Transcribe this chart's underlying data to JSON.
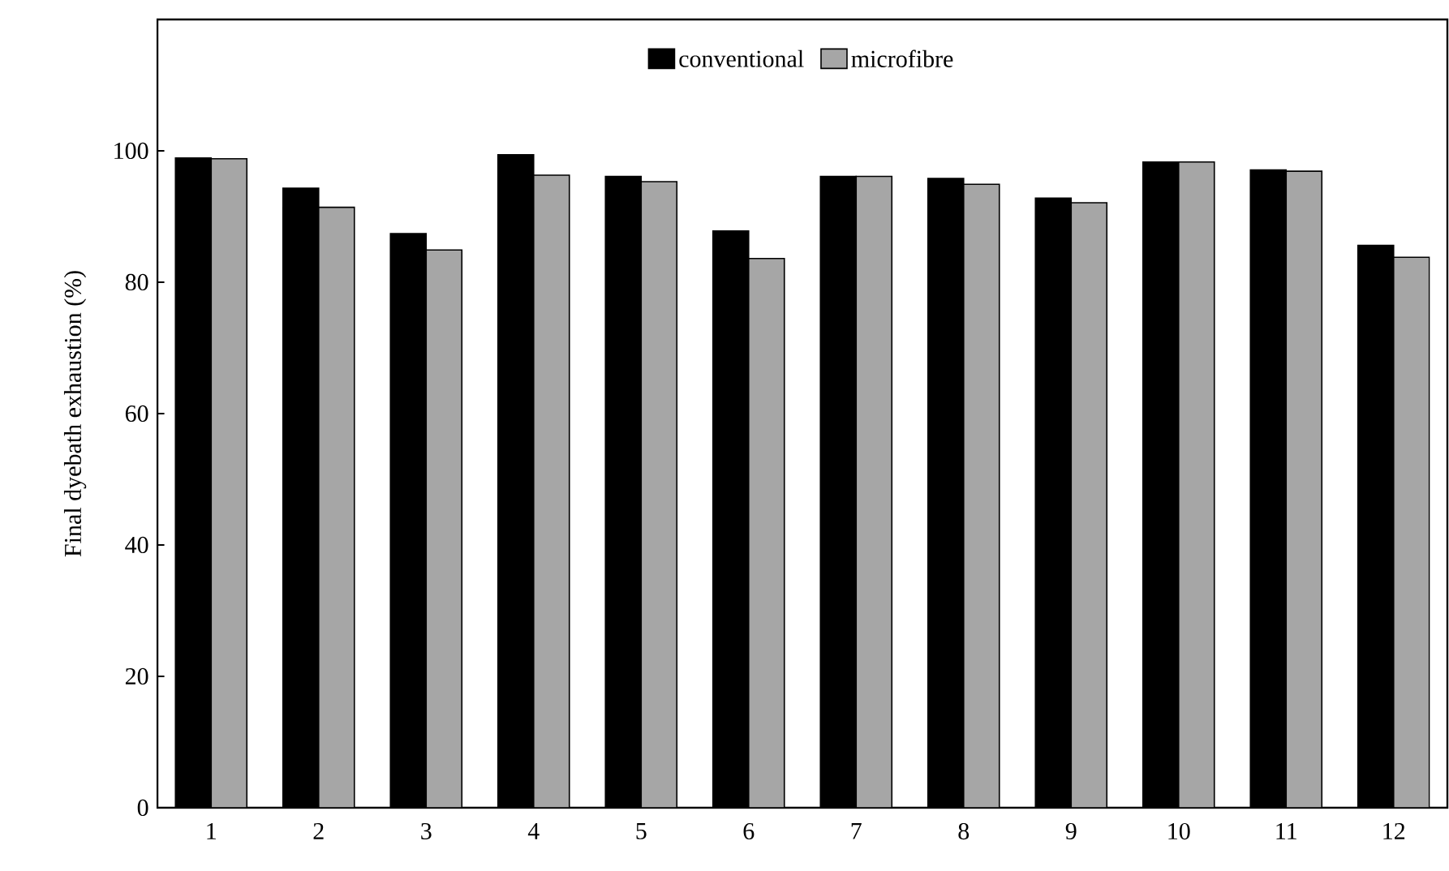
{
  "chart_data": {
    "type": "bar",
    "ylabel": "Final dyebath exhaustion (%)",
    "categories": [
      "1",
      "2",
      "3",
      "4",
      "5",
      "6",
      "7",
      "8",
      "9",
      "10",
      "11",
      "12"
    ],
    "series": [
      {
        "name": "conventional",
        "color": "#000000",
        "values": [
          98.9,
          94.3,
          87.4,
          99.4,
          96.1,
          87.8,
          96.1,
          95.8,
          92.8,
          98.3,
          97.1,
          85.6
        ]
      },
      {
        "name": "microfibre",
        "color": "#a6a6a6",
        "values": [
          98.8,
          91.4,
          84.9,
          96.3,
          95.3,
          83.6,
          96.1,
          94.9,
          92.1,
          98.3,
          96.9,
          83.8
        ]
      }
    ],
    "ylim": [
      0,
      120
    ],
    "yticks": [
      0,
      20,
      40,
      60,
      80,
      100
    ],
    "grid": false,
    "legend": "top"
  }
}
